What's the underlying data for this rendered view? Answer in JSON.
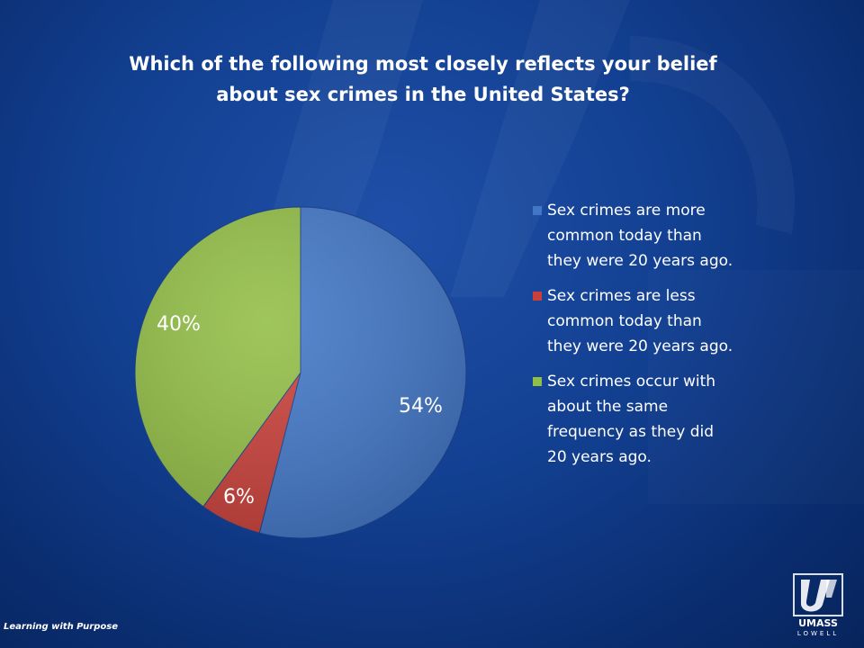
{
  "chart_data": {
    "type": "pie",
    "title_lines": [
      "Which of the following most closely reflects your belief",
      "about sex crimes in the United States?"
    ],
    "start_angle_deg": 0,
    "direction": "clockwise",
    "legend_position": "right",
    "slices": [
      {
        "label": "Sex crimes are more common today than they were 20 years ago.",
        "legend_lines": [
          "Sex crimes are more",
          "common today than",
          "they were 20 years ago."
        ],
        "value": 54,
        "display": "54%",
        "color": "#4277c7"
      },
      {
        "label": "Sex crimes are less common today than they were 20 years ago.",
        "legend_lines": [
          "Sex crimes are less",
          "common today than",
          "they were 20 years ago."
        ],
        "value": 6,
        "display": "6%",
        "color": "#c9403a"
      },
      {
        "label": "Sex crimes occur with about the same frequency as they did 20 years ago.",
        "legend_lines": [
          "Sex crimes occur with",
          "about the same",
          "frequency as they did",
          "20 years ago."
        ],
        "value": 40,
        "display": "40%",
        "color": "#92be46"
      }
    ]
  },
  "footer": {
    "tagline": "Learning with Purpose"
  },
  "logo": {
    "line1": "UMASS",
    "line2": "LOWELL"
  },
  "colors": {
    "background": "#123f90",
    "text": "#ffffff"
  }
}
